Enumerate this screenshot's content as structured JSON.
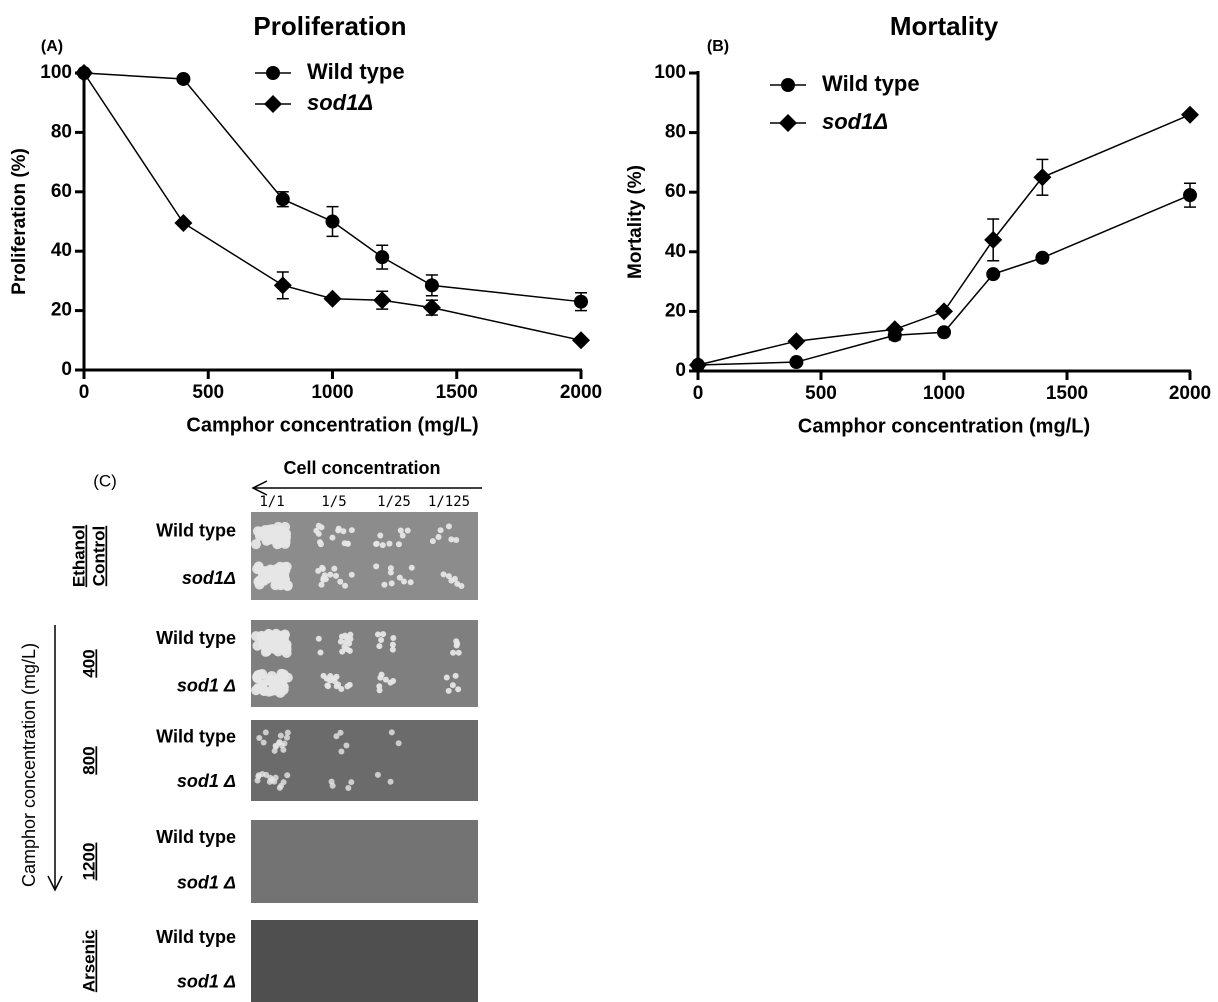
{
  "chart_data": [
    {
      "type": "line",
      "title": "Proliferation",
      "panel_label": "(A)",
      "x_label": "Camphor concentration (mg/L)",
      "y_label": "Proliferation (%)",
      "x": [
        0,
        400,
        800,
        1000,
        1200,
        1400,
        2000
      ],
      "xlim": [
        0,
        2000
      ],
      "xticks": [
        0,
        500,
        1000,
        1500,
        2000
      ],
      "ylim": [
        0,
        100
      ],
      "yticks": [
        0,
        20,
        40,
        60,
        80,
        100
      ],
      "legend": "upper right",
      "series": [
        {
          "name": "Wild type",
          "color": "#000000",
          "marker": "circle",
          "values": [
            100,
            98,
            57.5,
            50,
            38,
            28.5,
            23
          ],
          "errors": [
            0,
            0,
            2.5,
            5,
            4,
            3.5,
            3
          ]
        },
        {
          "name": "sod1Δ",
          "color": "#000000",
          "marker": "diamond",
          "values": [
            100,
            49.5,
            28.5,
            24,
            23.5,
            21,
            10
          ],
          "errors": [
            0,
            0,
            4.5,
            0,
            3,
            2.5,
            0
          ]
        }
      ]
    },
    {
      "type": "line",
      "title": "Mortality",
      "panel_label": "(B)",
      "x_label": "Camphor concentration (mg/L)",
      "y_label": "Mortality (%)",
      "x": [
        0,
        400,
        800,
        1000,
        1200,
        1400,
        2000
      ],
      "xlim": [
        0,
        2000
      ],
      "xticks": [
        0,
        500,
        1000,
        1500,
        2000
      ],
      "ylim": [
        0,
        100
      ],
      "yticks": [
        0,
        20,
        40,
        60,
        80,
        100
      ],
      "legend": "upper left",
      "series": [
        {
          "name": "Wild type",
          "color": "#000000",
          "marker": "circle",
          "values": [
            2,
            3,
            12,
            13,
            32.5,
            38,
            59
          ],
          "errors": [
            0,
            0,
            1.5,
            0,
            0,
            0,
            4
          ]
        },
        {
          "name": "sod1Δ",
          "color": "#000000",
          "marker": "diamond",
          "values": [
            2,
            10,
            14,
            20,
            44,
            65,
            86
          ],
          "errors": [
            0,
            0,
            0,
            0,
            7,
            6,
            0
          ]
        }
      ]
    }
  ],
  "panel_c": {
    "label": "(C)",
    "x_title": "Cell concentration",
    "dilutions": [
      "1/1",
      "1/5",
      "1/25",
      "1/125"
    ],
    "y_title": "Camphor concentration (mg/L)",
    "groups": [
      {
        "label": [
          "Ethanol",
          "Control"
        ],
        "rows": [
          "Wild type",
          "sod1Δ"
        ]
      },
      {
        "label": [
          "400"
        ],
        "rows": [
          "Wild type",
          "sod1 Δ"
        ]
      },
      {
        "label": [
          "800"
        ],
        "rows": [
          "Wild type",
          "sod1 Δ"
        ]
      },
      {
        "label": [
          "1200"
        ],
        "rows": [
          "Wild type",
          "sod1 Δ"
        ]
      },
      {
        "label": [
          "Arsenic"
        ],
        "rows": [
          "Wild type",
          "sod1 Δ"
        ]
      }
    ]
  }
}
